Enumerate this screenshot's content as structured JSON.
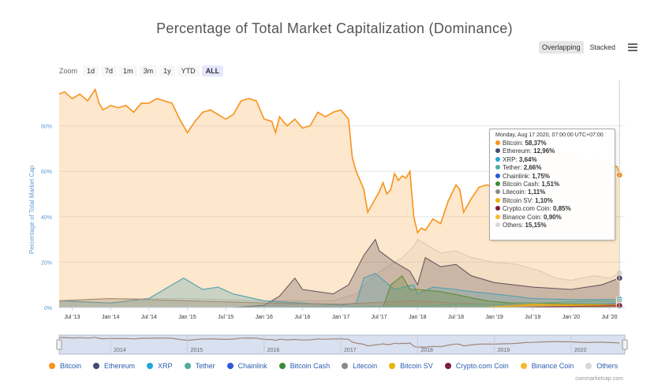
{
  "page": {
    "title": "Percentage of Total Market Capitalization (Dominance)"
  },
  "modes": {
    "overlapping": "Overlapping",
    "stacked": "Stacked"
  },
  "zoom": {
    "label": "Zoom",
    "buttons": [
      "1d",
      "7d",
      "1m",
      "3m",
      "1y",
      "YTD",
      "ALL"
    ],
    "active": "ALL"
  },
  "colors": {
    "Bitcoin": "#f7931a",
    "Ethereum": "#454a75",
    "XRP": "#23a5d8",
    "Tether": "#4fae9c",
    "Chainlink": "#2a5ada",
    "Bitcoin Cash": "#3a8a3a",
    "Litecoin": "#8a8a8a",
    "Bitcoin SV": "#e8b30c",
    "Crypto.com Coin": "#7a1f3d",
    "Binance Coin": "#f3ba2f",
    "Others": "#d9d9d9"
  },
  "tooltip": {
    "header": "Monday, Aug 17 2020, 07:00:00 UTC+07:00",
    "rows": [
      {
        "name": "Bitcoin",
        "value": "58,37%"
      },
      {
        "name": "Ethereum",
        "value": "12,96%"
      },
      {
        "name": "XRP",
        "value": "3,64%"
      },
      {
        "name": "Tether",
        "value": "2,66%"
      },
      {
        "name": "Chainlink",
        "value": "1,75%"
      },
      {
        "name": "Bitcoin Cash",
        "value": "1,51%"
      },
      {
        "name": "Litecoin",
        "value": "1,11%"
      },
      {
        "name": "Bitcoin SV",
        "value": "1,10%"
      },
      {
        "name": "Crypto.com Coin",
        "value": "0,85%"
      },
      {
        "name": "Binance Coin",
        "value": "0,90%"
      },
      {
        "name": "Others",
        "value": "15,15%"
      }
    ]
  },
  "legend": [
    "Bitcoin",
    "Ethereum",
    "XRP",
    "Tether",
    "Chainlink",
    "Bitcoin Cash",
    "Litecoin",
    "Bitcoin SV",
    "Crypto.com Coin",
    "Binance Coin",
    "Others"
  ],
  "credit": "coinmarketcap.com",
  "chart_data": {
    "type": "area",
    "title": "Percentage of Total Market Capitalization (Dominance)",
    "ylabel": "Percentage of Total Market Cap",
    "ylim": [
      0,
      100
    ],
    "yticks": [
      0,
      20,
      40,
      60,
      80
    ],
    "ytick_labels": [
      "0%",
      "20%",
      "40%",
      "60%",
      "80%"
    ],
    "x_range": [
      2013.33,
      2020.7
    ],
    "xtick_values": [
      2013.5,
      2014.0,
      2014.5,
      2015.0,
      2015.5,
      2016.0,
      2016.5,
      2017.0,
      2017.5,
      2018.0,
      2018.5,
      2019.0,
      2019.5,
      2020.0,
      2020.5
    ],
    "xtick_labels": [
      "Jul '13",
      "Jan '14",
      "Jul '14",
      "Jan '15",
      "Jul '15",
      "Jan '16",
      "Jul '16",
      "Jan '17",
      "Jul '17",
      "Jan '18",
      "Jul '18",
      "Jan '19",
      "Jul '19",
      "Jan '20",
      "Jul '20"
    ],
    "navigator_years": [
      "2014",
      "2015",
      "2016",
      "2017",
      "2018",
      "2019",
      "2020"
    ],
    "navigator_year_values": [
      2014,
      2015,
      2016,
      2017,
      2018,
      2019,
      2020
    ],
    "series": [
      {
        "name": "Others",
        "x": [
          2013.33,
          2014.0,
          2015.0,
          2016.0,
          2016.9,
          2017.2,
          2017.4,
          2017.6,
          2017.8,
          2017.95,
          2018.0,
          2018.1,
          2018.3,
          2018.5,
          2018.7,
          2019.0,
          2019.3,
          2019.6,
          2019.8,
          2020.0,
          2020.3,
          2020.5,
          2020.63
        ],
        "y": [
          3,
          4,
          4,
          3,
          3,
          6,
          13,
          18,
          22,
          27,
          30,
          28,
          24,
          25,
          22,
          20,
          19,
          16,
          13,
          12,
          14,
          13,
          15.15
        ]
      },
      {
        "name": "Ethereum",
        "x": [
          2015.6,
          2016.0,
          2016.2,
          2016.4,
          2016.5,
          2016.9,
          2017.1,
          2017.3,
          2017.45,
          2017.5,
          2017.7,
          2017.9,
          2018.0,
          2018.1,
          2018.3,
          2018.5,
          2018.7,
          2019.0,
          2019.5,
          2020.0,
          2020.4,
          2020.63
        ],
        "y": [
          0,
          1,
          5,
          13,
          8,
          6,
          10,
          23,
          30,
          25,
          20,
          16,
          10,
          22,
          18,
          19,
          14,
          11,
          9,
          8,
          10,
          12.96
        ]
      },
      {
        "name": "XRP",
        "x": [
          2013.33,
          2014.0,
          2014.5,
          2014.95,
          2015.0,
          2015.2,
          2015.4,
          2015.6,
          2016.0,
          2016.5,
          2017.0,
          2017.2,
          2017.3,
          2017.45,
          2017.7,
          2017.95,
          2018.0,
          2018.2,
          2018.5,
          2018.7,
          2019.0,
          2019.5,
          2020.0,
          2020.63
        ],
        "y": [
          3,
          2,
          4,
          13,
          12,
          8,
          9,
          6,
          3,
          2,
          1,
          2,
          13,
          15,
          8,
          10,
          6,
          9,
          8,
          7,
          6,
          4,
          3.5,
          3.64
        ]
      },
      {
        "name": "Bitcoin Cash",
        "x": [
          2017.55,
          2017.65,
          2017.8,
          2017.9,
          2018.0,
          2018.3,
          2018.6,
          2018.9,
          2019.2,
          2019.6,
          2020.0,
          2020.63
        ],
        "y": [
          0,
          10,
          14,
          8,
          8,
          7,
          5,
          3,
          2,
          2,
          1.5,
          1.51
        ]
      },
      {
        "name": "Litecoin",
        "x": [
          2013.33,
          2014.0,
          2015.0,
          2016.0,
          2017.0,
          2017.9,
          2018.0,
          2018.5,
          2019.0,
          2019.5,
          2020.0,
          2020.63
        ],
        "y": [
          3,
          4,
          3,
          2,
          1.5,
          3,
          3,
          2,
          1.5,
          1.5,
          1.2,
          1.11
        ]
      },
      {
        "name": "Tether",
        "x": [
          2015.5,
          2017.0,
          2017.5,
          2018.0,
          2018.5,
          2019.0,
          2019.5,
          2020.0,
          2020.3,
          2020.63
        ],
        "y": [
          0,
          0.2,
          0.5,
          0.5,
          1.5,
          1.5,
          2,
          2.5,
          3,
          2.66
        ]
      },
      {
        "name": "Chainlink",
        "x": [
          2019.3,
          2019.6,
          2020.0,
          2020.3,
          2020.63
        ],
        "y": [
          0,
          0.5,
          0.5,
          1,
          1.75
        ]
      },
      {
        "name": "Binance Coin",
        "x": [
          2018.9,
          2019.3,
          2019.6,
          2020.0,
          2020.63
        ],
        "y": [
          0,
          1,
          1,
          0.8,
          0.9
        ]
      },
      {
        "name": "Bitcoin SV",
        "x": [
          2018.9,
          2019.5,
          2020.0,
          2020.63
        ],
        "y": [
          0,
          1.5,
          1.2,
          1.1
        ]
      },
      {
        "name": "Crypto.com Coin",
        "x": [
          2019.3,
          2020.0,
          2020.63
        ],
        "y": [
          0,
          0.5,
          0.85
        ]
      },
      {
        "name": "Bitcoin",
        "x": [
          2013.33,
          2013.4,
          2013.5,
          2013.6,
          2013.7,
          2013.8,
          2013.85,
          2013.9,
          2014.0,
          2014.1,
          2014.2,
          2014.3,
          2014.4,
          2014.5,
          2014.6,
          2014.7,
          2014.8,
          2014.9,
          2014.95,
          2015.0,
          2015.1,
          2015.2,
          2015.3,
          2015.4,
          2015.5,
          2015.6,
          2015.7,
          2015.8,
          2015.9,
          2016.0,
          2016.1,
          2016.15,
          2016.2,
          2016.3,
          2016.4,
          2016.5,
          2016.6,
          2016.7,
          2016.8,
          2016.9,
          2017.0,
          2017.1,
          2017.15,
          2017.2,
          2017.3,
          2017.35,
          2017.45,
          2017.5,
          2017.55,
          2017.6,
          2017.65,
          2017.7,
          2017.75,
          2017.8,
          2017.85,
          2017.9,
          2017.95,
          2018.0,
          2018.05,
          2018.1,
          2018.2,
          2018.3,
          2018.35,
          2018.4,
          2018.5,
          2018.55,
          2018.6,
          2018.7,
          2018.8,
          2018.9,
          2019.0,
          2019.1,
          2019.2,
          2019.3,
          2019.4,
          2019.5,
          2019.6,
          2019.7,
          2019.8,
          2019.9,
          2020.0,
          2020.1,
          2020.2,
          2020.3,
          2020.4,
          2020.5,
          2020.6,
          2020.63
        ],
        "y": [
          94,
          95,
          92,
          94,
          91,
          96,
          90,
          87,
          89,
          88,
          89,
          86,
          90,
          90,
          92,
          91,
          90,
          83,
          80,
          77,
          82,
          86,
          87,
          85,
          83,
          85,
          91,
          92,
          91,
          83,
          82,
          77,
          84,
          80,
          83,
          79,
          80,
          86,
          84,
          86,
          87,
          83,
          66,
          60,
          52,
          42,
          48,
          51,
          55,
          50,
          52,
          59,
          56,
          58,
          57,
          60,
          40,
          33,
          35,
          34,
          39,
          37,
          42,
          47,
          54,
          52,
          42,
          48,
          53,
          54,
          53,
          55,
          56,
          58,
          63,
          64,
          67,
          68,
          69,
          68,
          68,
          65,
          63,
          65,
          65,
          63,
          62,
          58.37
        ]
      }
    ]
  }
}
